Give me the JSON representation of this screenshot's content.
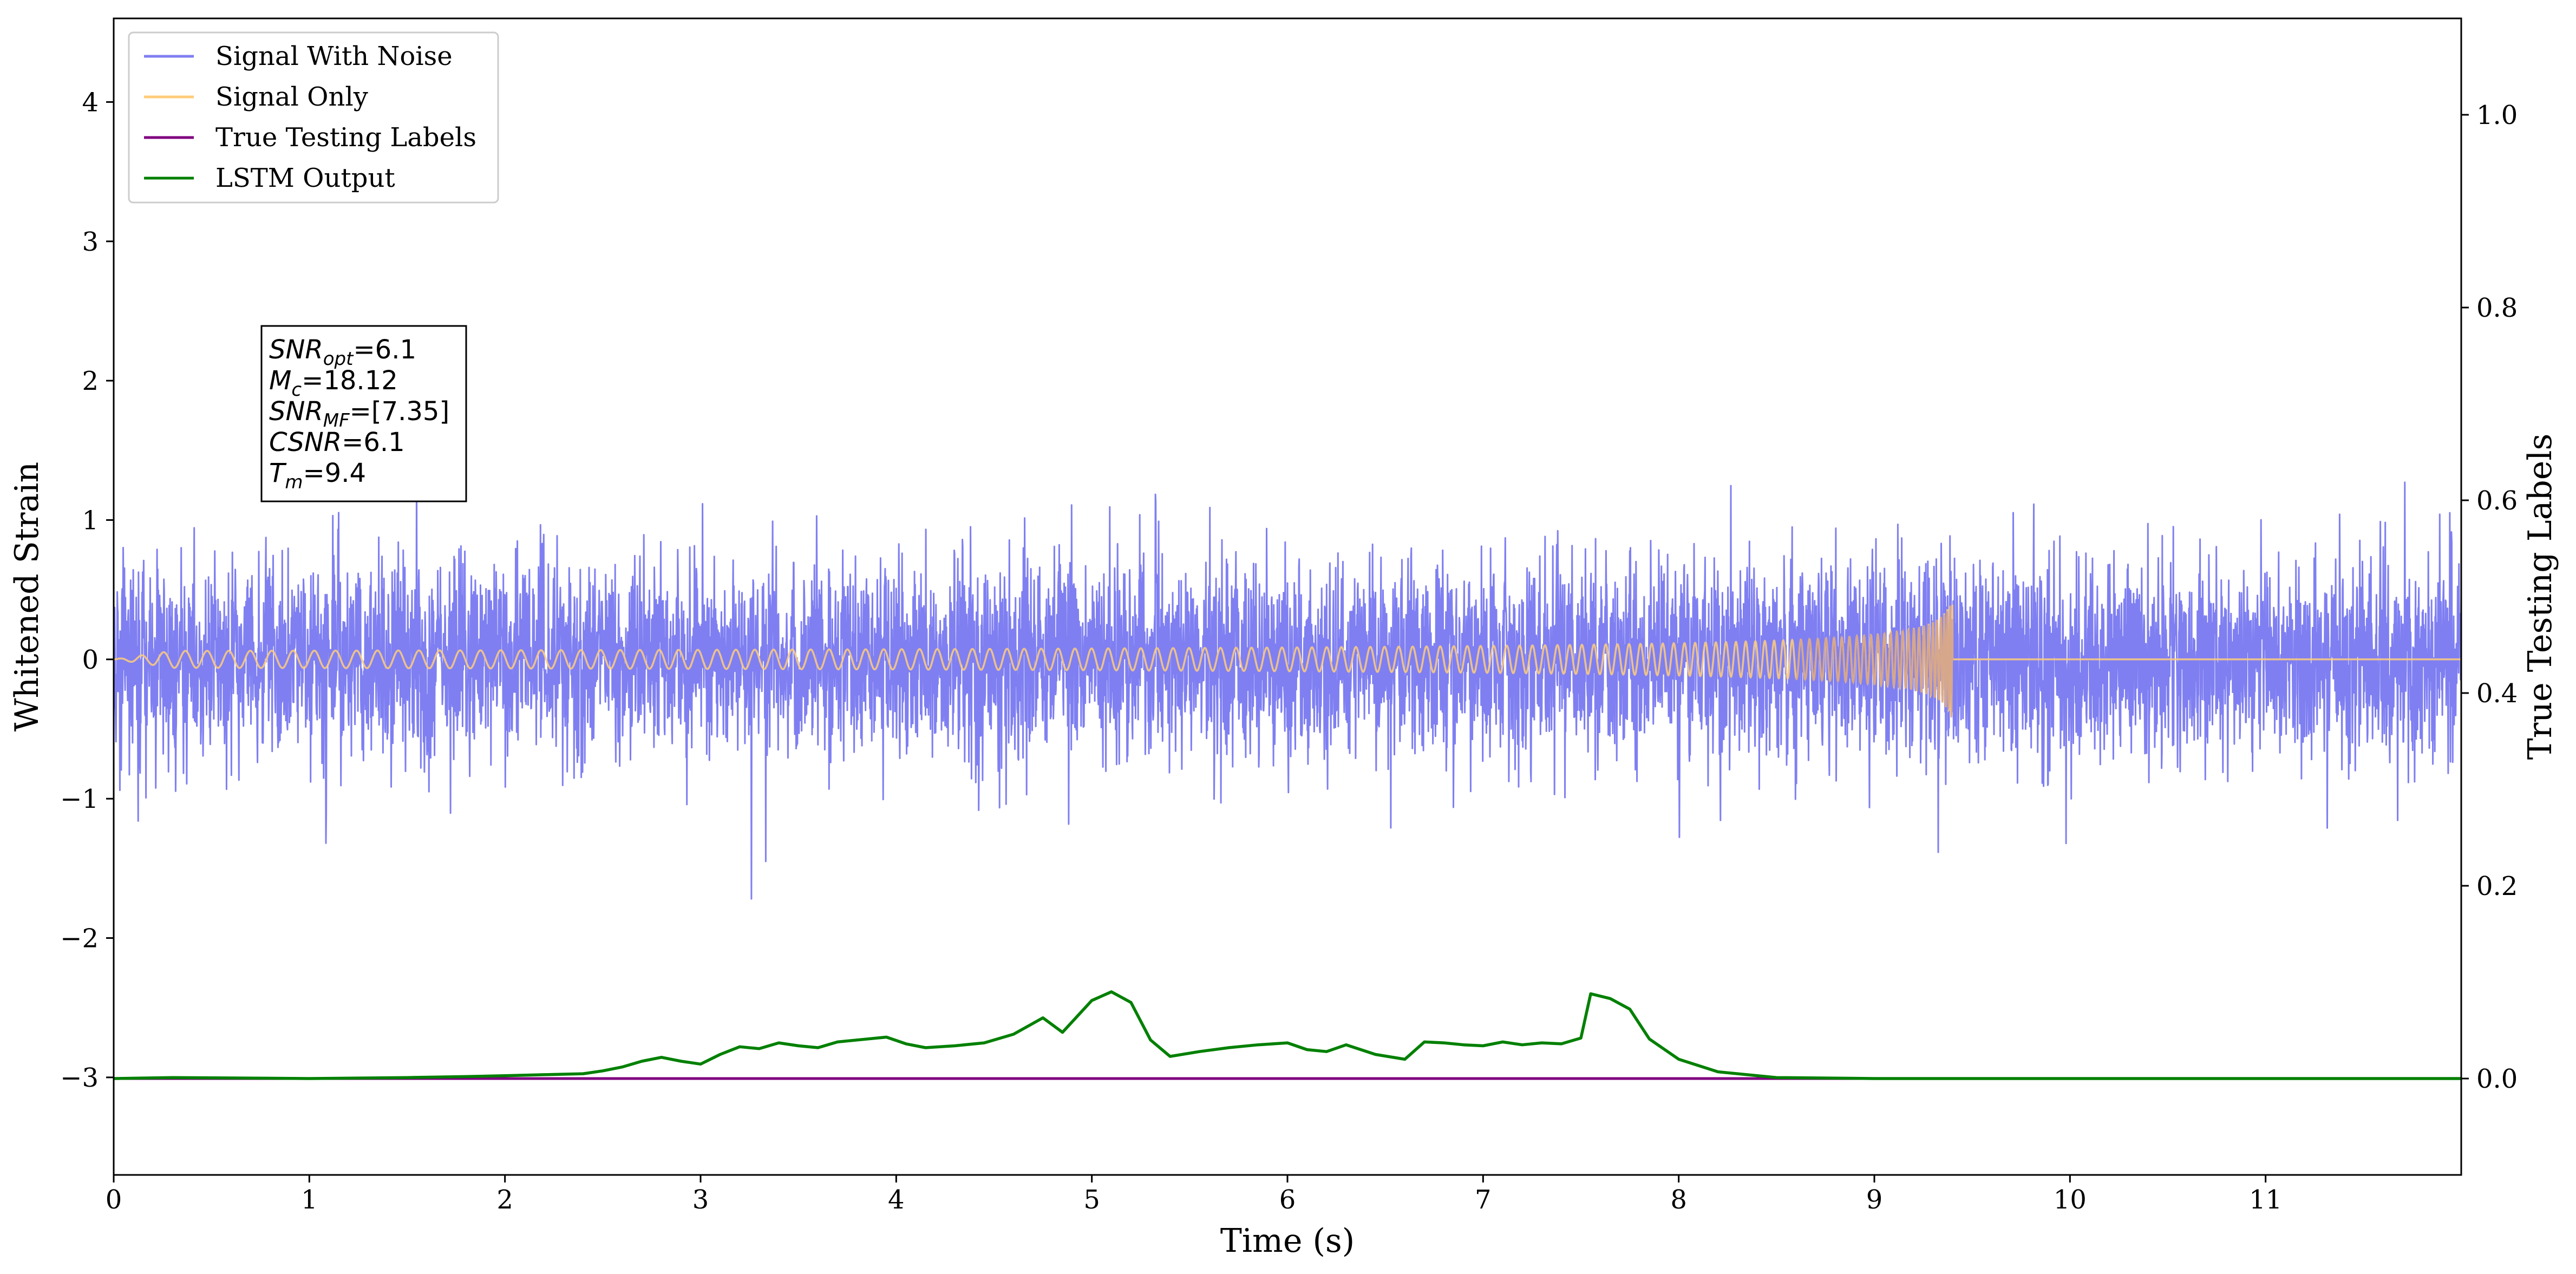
{
  "chart_data": {
    "type": "line",
    "title": "",
    "xlabel": "Time (s)",
    "ylabel": "Whitened Strain",
    "y2label": "True Testing Labels",
    "xlim": [
      0,
      12
    ],
    "ylim": [
      -3.7,
      4.6
    ],
    "y2lim": [
      -0.1,
      1.1
    ],
    "x_ticks": [
      0,
      1,
      2,
      3,
      4,
      5,
      6,
      7,
      8,
      9,
      10,
      11
    ],
    "x_tick_labels": [
      "0",
      "1",
      "2",
      "3",
      "4",
      "5",
      "6",
      "7",
      "8",
      "9",
      "10",
      "11"
    ],
    "y_ticks": [
      -3,
      -2,
      -1,
      0,
      1,
      2,
      3,
      4
    ],
    "y_tick_labels": [
      "−3",
      "−2",
      "−1",
      "0",
      "1",
      "2",
      "3",
      "4"
    ],
    "y2_ticks": [
      0.0,
      0.2,
      0.4,
      0.6,
      0.8,
      1.0
    ],
    "y2_tick_labels": [
      "0.0",
      "0.2",
      "0.4",
      "0.6",
      "0.8",
      "1.0"
    ],
    "grid": false,
    "legend_position": "top-left",
    "series": [
      {
        "name": "Signal With Noise",
        "color": "#7f7ff2",
        "axis": "left",
        "kind": "noise",
        "typical_amplitude": 0.8,
        "peak_range": [
          -1.75,
          1.8
        ]
      },
      {
        "name": "Signal Only",
        "color": "#ffcc7a",
        "axis": "left",
        "kind": "chirp",
        "merger_time": 9.4,
        "peak_amplitude": 0.45,
        "merged_color": "#c9968a"
      },
      {
        "name": "True Testing Labels",
        "color": "#800080",
        "axis": "right",
        "x": [
          0,
          12
        ],
        "values": [
          0.0,
          0.0
        ]
      },
      {
        "name": "LSTM Output",
        "color": "#008000",
        "axis": "right",
        "x": [
          0,
          0.3,
          1.0,
          1.5,
          1.8,
          2.0,
          2.2,
          2.4,
          2.5,
          2.6,
          2.7,
          2.8,
          2.9,
          3.0,
          3.1,
          3.2,
          3.3,
          3.4,
          3.5,
          3.6,
          3.7,
          3.8,
          3.95,
          4.05,
          4.15,
          4.3,
          4.45,
          4.6,
          4.75,
          4.85,
          5.0,
          5.1,
          5.2,
          5.3,
          5.4,
          5.55,
          5.7,
          5.85,
          6.0,
          6.1,
          6.2,
          6.3,
          6.45,
          6.6,
          6.7,
          6.8,
          6.9,
          7.0,
          7.1,
          7.2,
          7.3,
          7.4,
          7.5,
          7.55,
          7.65,
          7.75,
          7.85,
          8.0,
          8.2,
          8.5,
          9.0,
          10.0,
          11.0,
          12.0
        ],
        "values": [
          0.0,
          0.001,
          0.0,
          0.001,
          0.002,
          0.003,
          0.004,
          0.005,
          0.008,
          0.012,
          0.018,
          0.022,
          0.018,
          0.015,
          0.025,
          0.033,
          0.031,
          0.037,
          0.034,
          0.032,
          0.038,
          0.04,
          0.043,
          0.036,
          0.032,
          0.034,
          0.037,
          0.046,
          0.063,
          0.048,
          0.081,
          0.09,
          0.079,
          0.04,
          0.023,
          0.028,
          0.032,
          0.035,
          0.037,
          0.03,
          0.028,
          0.035,
          0.025,
          0.02,
          0.038,
          0.037,
          0.035,
          0.034,
          0.038,
          0.035,
          0.037,
          0.036,
          0.042,
          0.088,
          0.083,
          0.072,
          0.041,
          0.02,
          0.007,
          0.001,
          0.0,
          0.0,
          0.0,
          0.0
        ]
      }
    ],
    "annotation": {
      "position": "upper-left",
      "lines": [
        {
          "sym": "SNR",
          "sub": "opt",
          "rest": "=6.1"
        },
        {
          "sym": "M",
          "sub": "c",
          "rest": "=18.12"
        },
        {
          "sym": "SNR",
          "sub": "MF",
          "rest": "=[7.35]"
        },
        {
          "sym": "CSNR",
          "sub": "",
          "rest": "=6.1"
        },
        {
          "sym": "T",
          "sub": "m",
          "rest": "=9.4"
        }
      ]
    }
  }
}
